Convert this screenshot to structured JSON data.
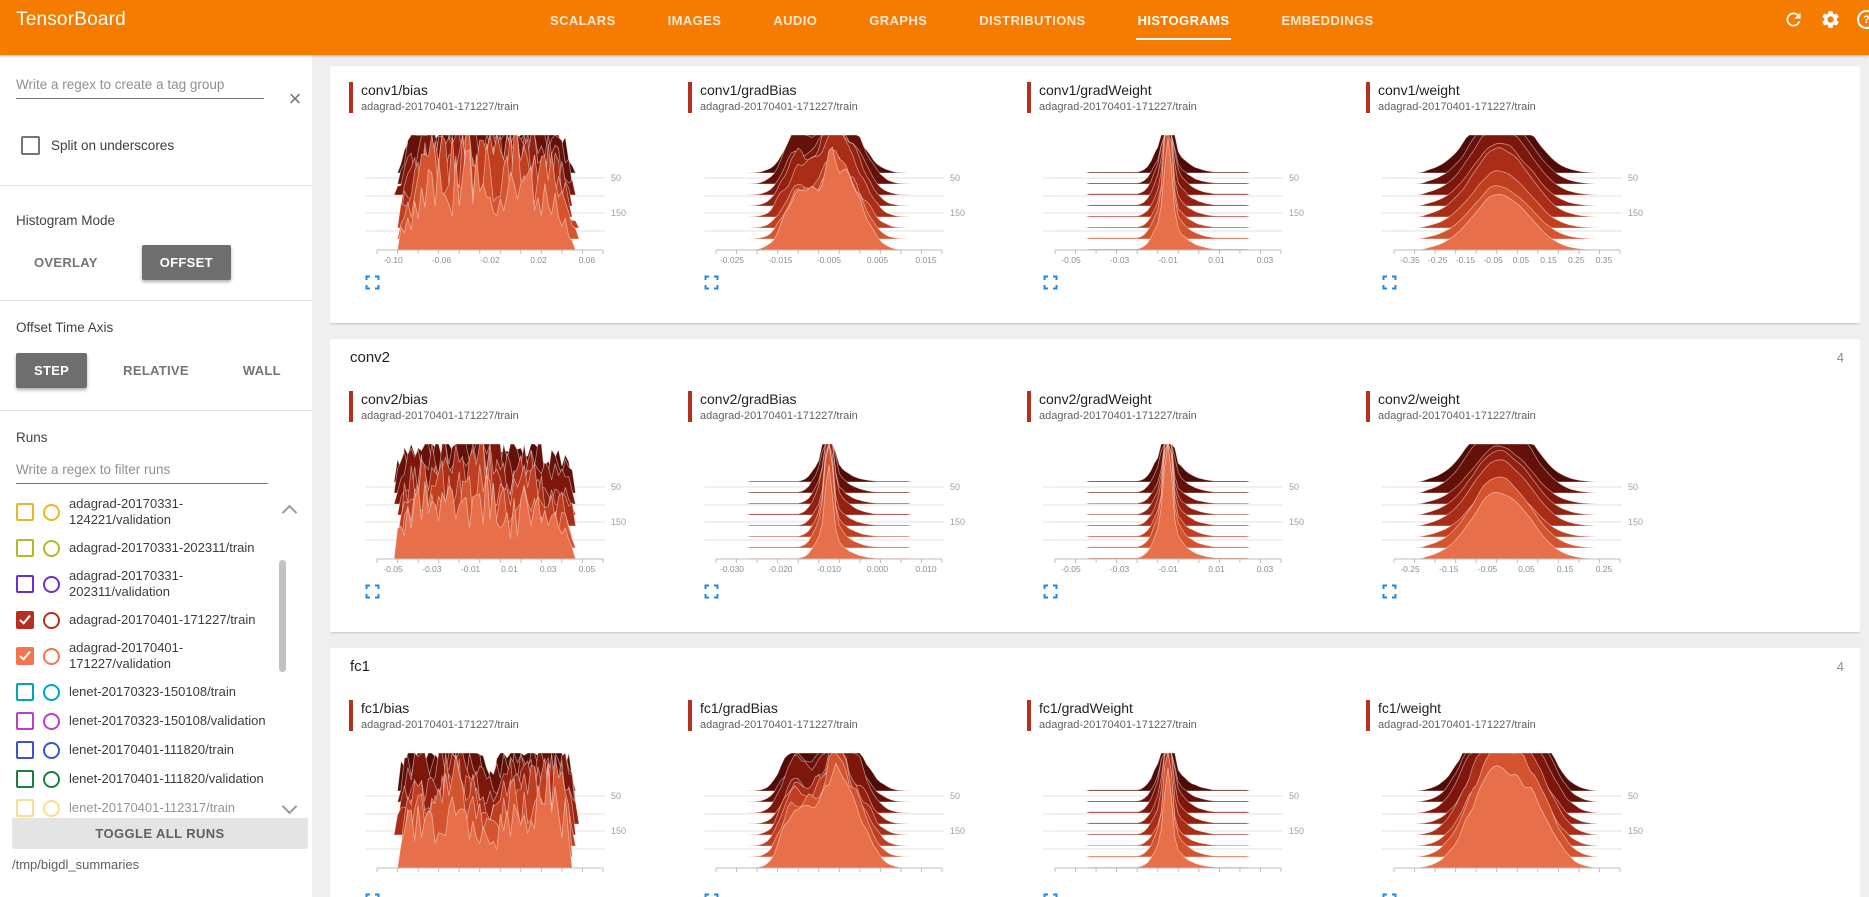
{
  "toolbar": {
    "title": "TensorBoard",
    "tabs": [
      "SCALARS",
      "IMAGES",
      "AUDIO",
      "GRAPHS",
      "DISTRIBUTIONS",
      "HISTOGRAMS",
      "EMBEDDINGS"
    ],
    "active_tab": "HISTOGRAMS",
    "accent_color": "#f57c00",
    "icons": [
      "refresh-icon",
      "settings-icon",
      "help-icon"
    ]
  },
  "sidebar": {
    "tag_input_placeholder": "Write a regex to create a tag group",
    "split_checkbox": {
      "label": "Split on underscores",
      "checked": false
    },
    "histogram_mode": {
      "label": "Histogram Mode",
      "options": [
        "OVERLAY",
        "OFFSET"
      ],
      "selected": "OFFSET"
    },
    "offset_time_axis": {
      "label": "Offset Time Axis",
      "options": [
        "STEP",
        "RELATIVE",
        "WALL"
      ],
      "selected": "STEP"
    },
    "runs": {
      "label": "Runs",
      "filter_placeholder": "Write a regex to filter runs",
      "items": [
        {
          "name": "adagrad-20170331-124221/validation",
          "color": "#edb527",
          "checked": false,
          "faded": false
        },
        {
          "name": "adagrad-20170331-202311/train",
          "color": "#b1bb28",
          "checked": false,
          "faded": false
        },
        {
          "name": "adagrad-20170331-202311/validation",
          "color": "#6b32c9",
          "checked": false,
          "faded": false
        },
        {
          "name": "adagrad-20170401-171227/train",
          "color": "#b5301e",
          "checked": true,
          "faded": false
        },
        {
          "name": "adagrad-20170401-171227/validation",
          "color": "#f4744d",
          "checked": true,
          "faded": false
        },
        {
          "name": "lenet-20170323-150108/train",
          "color": "#00a5c0",
          "checked": false,
          "faded": false
        },
        {
          "name": "lenet-20170323-150108/validation",
          "color": "#ba3ec8",
          "checked": false,
          "faded": false
        },
        {
          "name": "lenet-20170401-111820/train",
          "color": "#3956d2",
          "checked": false,
          "faded": false
        },
        {
          "name": "lenet-20170401-111820/validation",
          "color": "#17813d",
          "checked": false,
          "faded": false
        },
        {
          "name": "lenet-20170401-112317/train",
          "color": "#f2c232",
          "checked": false,
          "faded": true
        }
      ],
      "toggle_all_label": "TOGGLE ALL RUNS"
    },
    "log_dir": "/tmp/bigdl_summaries"
  },
  "histogram_style": {
    "run_accent": "#b5301e",
    "ridge_palette": [
      "#4f0b06",
      "#651008",
      "#7d170b",
      "#942110",
      "#a92d17",
      "#bf3f20",
      "#d3542f",
      "#e76f4a"
    ],
    "step_axis_labels": [
      "50",
      "150"
    ]
  },
  "sections": [
    {
      "name": "conv1",
      "count": "",
      "header_visible": false,
      "charts": [
        {
          "title": "conv1/bias",
          "run": "adagrad-20170401-171227/train",
          "shape": "jagged",
          "seed": 11,
          "y_ticks": [
            "50",
            "150"
          ],
          "x_ticks": [
            "-0.10",
            "-0.06",
            "-0.02",
            "0.02",
            "0.06"
          ]
        },
        {
          "title": "conv1/gradBias",
          "run": "adagrad-20170401-171227/train",
          "shape": "lumpy",
          "seed": 22,
          "y_ticks": [
            "50",
            "150"
          ],
          "x_ticks": [
            "-0.025",
            "-0.015",
            "-0.005",
            "0.005",
            "0.015"
          ]
        },
        {
          "title": "conv1/gradWeight",
          "run": "adagrad-20170401-171227/train",
          "shape": "spike",
          "seed": 33,
          "y_ticks": [
            "50",
            "150"
          ],
          "x_ticks": [
            "-0.05",
            "-0.03",
            "-0.01",
            "0.01",
            "0.03"
          ]
        },
        {
          "title": "conv1/weight",
          "run": "adagrad-20170401-171227/train",
          "shape": "bell",
          "seed": 44,
          "y_ticks": [
            "50",
            "150"
          ],
          "x_ticks": [
            "-0.35",
            "-0.25",
            "-0.15",
            "-0.05",
            "0.05",
            "0.15",
            "0.25",
            "0.35"
          ]
        }
      ]
    },
    {
      "name": "conv2",
      "count": "4",
      "header_visible": true,
      "charts": [
        {
          "title": "conv2/bias",
          "run": "adagrad-20170401-171227/train",
          "shape": "jagged",
          "seed": 55,
          "y_ticks": [
            "50",
            "150"
          ],
          "x_ticks": [
            "-0.05",
            "-0.03",
            "-0.01",
            "0.01",
            "0.03",
            "0.05"
          ]
        },
        {
          "title": "conv2/gradBias",
          "run": "adagrad-20170401-171227/train",
          "shape": "spike",
          "seed": 66,
          "y_ticks": [
            "50",
            "150"
          ],
          "x_ticks": [
            "-0.030",
            "-0.020",
            "-0.010",
            "0.000",
            "0.010"
          ]
        },
        {
          "title": "conv2/gradWeight",
          "run": "adagrad-20170401-171227/train",
          "shape": "spike",
          "seed": 77,
          "y_ticks": [
            "50",
            "150"
          ],
          "x_ticks": [
            "-0.05",
            "-0.03",
            "-0.01",
            "0.01",
            "0.03"
          ]
        },
        {
          "title": "conv2/weight",
          "run": "adagrad-20170401-171227/train",
          "shape": "bell",
          "seed": 88,
          "y_ticks": [
            "50",
            "150"
          ],
          "x_ticks": [
            "-0.25",
            "-0.15",
            "-0.05",
            "0.05",
            "0.15",
            "0.25"
          ]
        }
      ]
    },
    {
      "name": "fc1",
      "count": "4",
      "header_visible": true,
      "charts": [
        {
          "title": "fc1/bias",
          "run": "adagrad-20170401-171227/train",
          "shape": "jagged",
          "seed": 99,
          "y_ticks": [
            "50",
            "150"
          ],
          "x_ticks": []
        },
        {
          "title": "fc1/gradBias",
          "run": "adagrad-20170401-171227/train",
          "shape": "lumpy",
          "seed": 111,
          "y_ticks": [
            "50",
            "150"
          ],
          "x_ticks": []
        },
        {
          "title": "fc1/gradWeight",
          "run": "adagrad-20170401-171227/train",
          "shape": "spike",
          "seed": 122,
          "y_ticks": [
            "50",
            "150"
          ],
          "x_ticks": []
        },
        {
          "title": "fc1/weight",
          "run": "adagrad-20170401-171227/train",
          "shape": "plateau",
          "seed": 133,
          "y_ticks": [
            "50",
            "150"
          ],
          "x_ticks": []
        }
      ]
    }
  ]
}
